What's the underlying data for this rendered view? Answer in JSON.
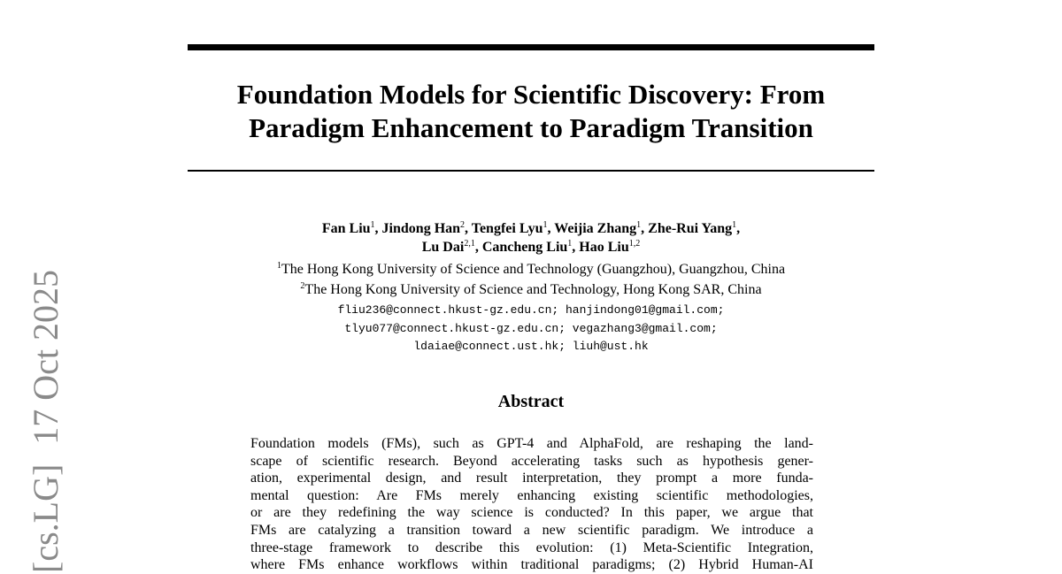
{
  "side_stamp": {
    "category": "[cs.LG]",
    "date": "17 Oct 2025"
  },
  "title": {
    "lines": [
      "Foundation Models for Scientific Discovery: From",
      "Paradigm Enhancement to Paradigm Transition"
    ]
  },
  "authors": {
    "lines": [
      [
        {
          "name": "Fan Liu",
          "affiliation": "1"
        },
        {
          "name": "Jindong Han",
          "affiliation": "2"
        },
        {
          "name": "Tengfei Lyu",
          "affiliation": "1"
        },
        {
          "name": "Weijia Zhang",
          "affiliation": "1"
        },
        {
          "name": "Zhe-Rui Yang",
          "affiliation": "1"
        }
      ],
      [
        {
          "name": "Lu Dai",
          "affiliation": "2,1"
        },
        {
          "name": "Cancheng Liu",
          "affiliation": "1"
        },
        {
          "name": "Hao Liu",
          "affiliation": "1,2"
        }
      ]
    ]
  },
  "affiliations": [
    {
      "mark": "1",
      "text": "The Hong Kong University of Science and Technology (Guangzhou), Guangzhou, China"
    },
    {
      "mark": "2",
      "text": "The Hong Kong University of Science and Technology, Hong Kong SAR, China"
    }
  ],
  "emails": [
    "fliu236@connect.hkust-gz.edu.cn; hanjindong01@gmail.com;",
    "tlyu077@connect.hkust-gz.edu.cn; vegazhang3@gmail.com;",
    "ldaiae@connect.ust.hk; liuh@ust.hk"
  ],
  "abstract": {
    "heading": "Abstract",
    "lines": [
      "Foundation models (FMs), such as GPT-4 and AlphaFold, are reshaping the land-",
      "scape of scientific research. Beyond accelerating tasks such as hypothesis gener-",
      "ation, experimental design, and result interpretation, they prompt a more funda-",
      "mental question: Are FMs merely enhancing existing scientific methodologies,",
      "or are they redefining the way science is conducted? In this paper, we argue that",
      "FMs are catalyzing a transition toward a new scientific paradigm. We introduce a",
      "three-stage framework to describe this evolution: (1) Meta-Scientific Integration,",
      "where FMs enhance workflows within traditional paradigms; (2) Hybrid Human-AI"
    ]
  }
}
